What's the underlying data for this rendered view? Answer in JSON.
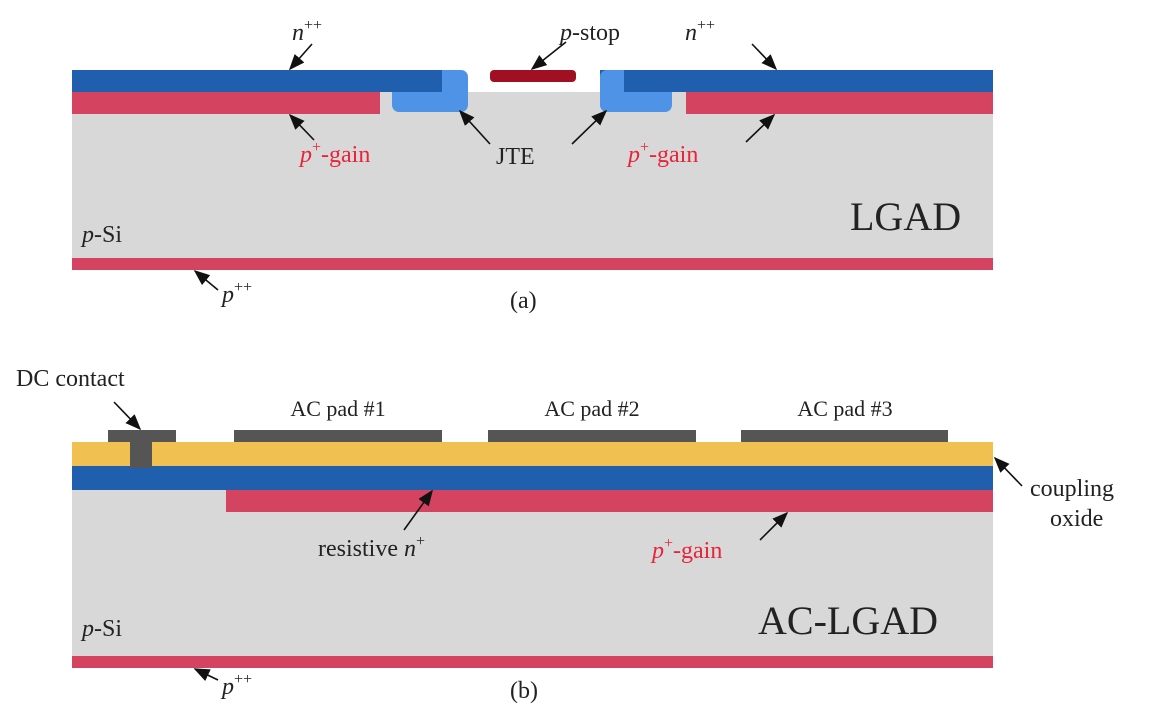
{
  "panel_a": {
    "caption": "(a)",
    "device": "LGAD",
    "bulk": {
      "base": "p",
      "rest": "-Si"
    },
    "n_left": {
      "base": "n",
      "sup": "++"
    },
    "n_right": {
      "base": "n",
      "sup": "++"
    },
    "p_stop": {
      "base": "p",
      "rest": "-stop"
    },
    "gain_left": {
      "base": "p",
      "sup": "+",
      "rest": "-gain"
    },
    "gain_right": {
      "base": "p",
      "sup": "+",
      "rest": "-gain"
    },
    "jte": "JTE",
    "backside": {
      "base": "p",
      "sup": "++"
    }
  },
  "panel_b": {
    "caption": "(b)",
    "device": "AC-LGAD",
    "bulk": {
      "base": "p",
      "rest": "-Si"
    },
    "dc_contact": "DC contact",
    "pads": [
      "AC pad #1",
      "AC pad #2",
      "AC pad #3"
    ],
    "oxide": [
      "coupling",
      "oxide"
    ],
    "resistive": {
      "text": "resistive",
      "base": "n",
      "sup": "+"
    },
    "gain": {
      "base": "p",
      "sup": "+",
      "rest": "-gain"
    },
    "backside": {
      "base": "p",
      "sup": "++"
    }
  }
}
